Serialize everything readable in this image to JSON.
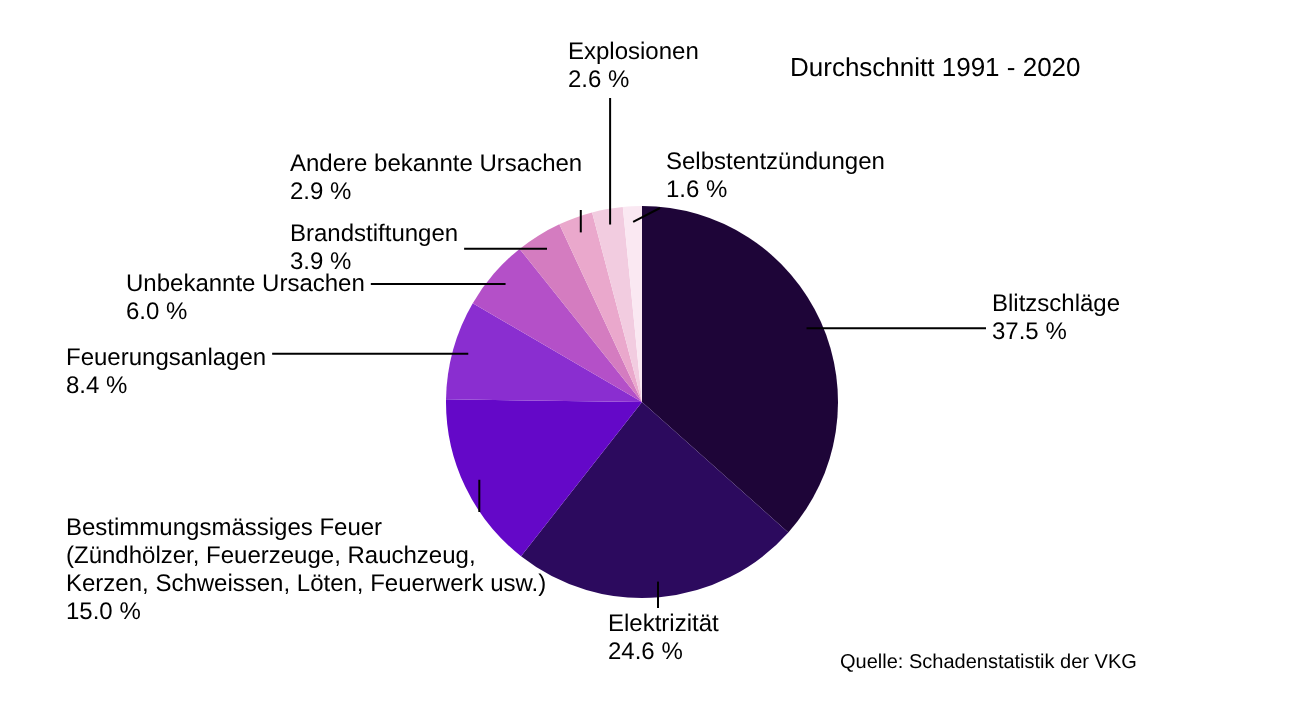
{
  "chart_data": {
    "type": "pie",
    "title": "Durchschnitt 1991 - 2020",
    "categories": [
      "Blitzschläge",
      "Elektrizität",
      "Bestimmungsmässiges Feuer\n(Zündhölzer, Feuerzeuge, Rauchzeug,\nKerzen, Schweissen, Löten, Feuerwerk usw.)",
      "Feuerungsanlagen",
      "Unbekannte Ursachen",
      "Brandstiftungen",
      "Andere bekannte Ursachen",
      "Explosionen",
      "Selbstentzündungen"
    ],
    "values": [
      37.5,
      24.6,
      15.0,
      8.4,
      6.0,
      3.9,
      2.9,
      2.6,
      1.6
    ],
    "value_labels": [
      "37.5 %",
      "24.6 %",
      "15.0 %",
      "8.4 %",
      "6.0 %",
      "3.9 %",
      "2.9 %",
      "2.6 %",
      "1.6 %"
    ],
    "colors": [
      "#1e0538",
      "#2c0a5e",
      "#6408c8",
      "#8a2ed0",
      "#b450c8",
      "#d47cc0",
      "#eaa8cc",
      "#f2cce0",
      "#fae8f2"
    ],
    "annotations": [
      "Quelle: Schadenstatistik der VKG"
    ]
  }
}
